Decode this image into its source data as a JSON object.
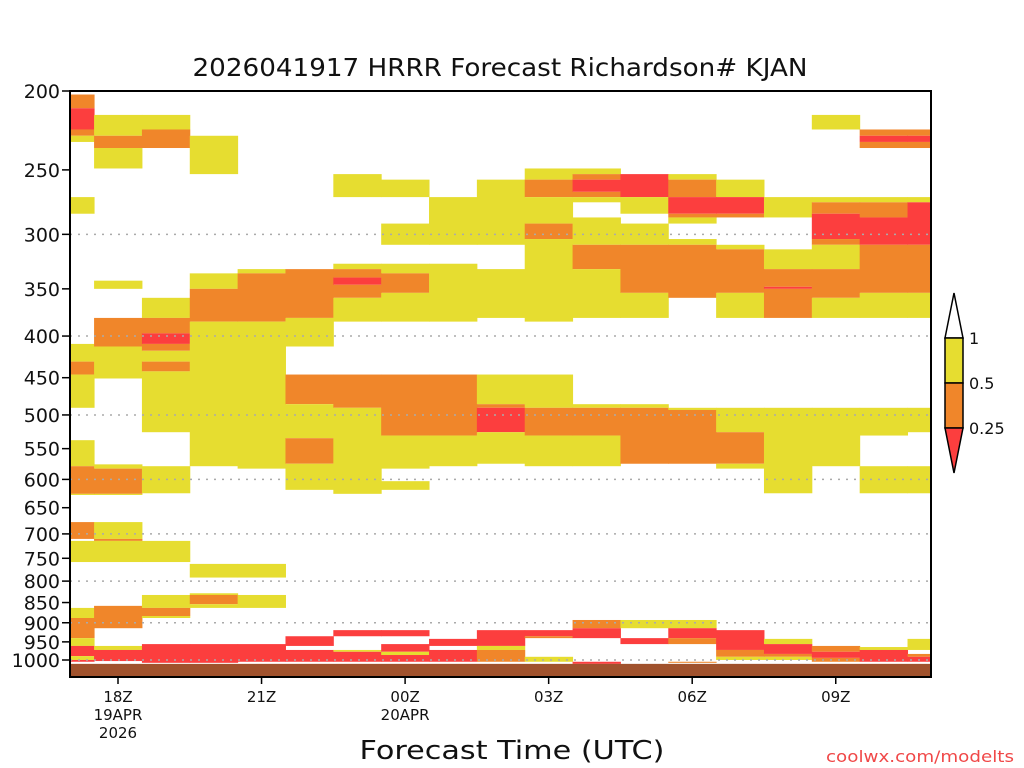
{
  "chart_data": {
    "type": "heatmap",
    "title": "2026041917 HRRR Forecast Richardson# KJAN",
    "xlabel": "Forecast Time (UTC)",
    "ylabel": "",
    "y_scale": "log-pressure (hPa), inverted",
    "ylim": [
      200,
      1050
    ],
    "yticks": [
      200,
      250,
      300,
      350,
      400,
      450,
      500,
      550,
      600,
      650,
      700,
      750,
      800,
      850,
      900,
      950,
      1000
    ],
    "ygrid": [
      300,
      400,
      500,
      600,
      700,
      800,
      900,
      1000
    ],
    "xticks": [
      {
        "hour_offset": 0,
        "label": "18Z",
        "sub1": "19APR",
        "sub2": "2026"
      },
      {
        "hour_offset": 3,
        "label": "21Z",
        "sub1": "",
        "sub2": ""
      },
      {
        "hour_offset": 6,
        "label": "00Z",
        "sub1": "20APR",
        "sub2": ""
      },
      {
        "hour_offset": 9,
        "label": "03Z",
        "sub1": "",
        "sub2": ""
      },
      {
        "hour_offset": 12,
        "label": "06Z",
        "sub1": "",
        "sub2": ""
      },
      {
        "hour_offset": 15,
        "label": "09Z",
        "sub1": "",
        "sub2": ""
      }
    ],
    "categories": {
      "y": {
        "range": "0.5 - 1",
        "color": "#e6dd30"
      },
      "o": {
        "range": "0.25 - 0.5",
        "color": "#f0862a"
      },
      "r": {
        "range": "< 0.25",
        "color": "#fc3e3e"
      }
    },
    "legend": {
      "placement": "right",
      "labels": [
        "1",
        "0.5",
        "0.25"
      ],
      "above_color": "#ffffff"
    },
    "ground": {
      "from_hpa": 1011,
      "to_hpa": 1050,
      "color": "#a0522d"
    },
    "columns": [
      {
        "time": "17Z",
        "hour_offset": -1,
        "segments": [
          [
            202,
            210,
            "o"
          ],
          [
            210,
            223,
            "r"
          ],
          [
            223,
            227,
            "o"
          ],
          [
            227,
            231,
            "y"
          ],
          [
            270,
            283,
            "y"
          ],
          [
            409,
            430,
            "y"
          ],
          [
            430,
            446,
            "o"
          ],
          [
            446,
            490,
            "y"
          ],
          [
            537,
            578,
            "y"
          ],
          [
            578,
            625,
            "o"
          ],
          [
            625,
            627,
            "y"
          ],
          [
            677,
            710,
            "o"
          ],
          [
            714,
            758,
            "y"
          ],
          [
            863,
            888,
            "y"
          ],
          [
            888,
            940,
            "o"
          ],
          [
            940,
            961,
            "y"
          ],
          [
            961,
            989,
            "r"
          ],
          [
            989,
            1000,
            "y"
          ],
          [
            1000,
            1005,
            "r"
          ]
        ]
      },
      {
        "time": "18Z",
        "hour_offset": 0,
        "segments": [
          [
            214,
            227,
            "y"
          ],
          [
            227,
            235,
            "o"
          ],
          [
            235,
            249,
            "y"
          ],
          [
            342,
            350,
            "y"
          ],
          [
            380,
            412,
            "o"
          ],
          [
            412,
            451,
            "y"
          ],
          [
            575,
            582,
            "y"
          ],
          [
            582,
            625,
            "o"
          ],
          [
            625,
            627,
            "y"
          ],
          [
            677,
            710,
            "y"
          ],
          [
            710,
            714,
            "o"
          ],
          [
            714,
            758,
            "y"
          ],
          [
            858,
            914,
            "o"
          ],
          [
            961,
            972,
            "y"
          ],
          [
            972,
            1003,
            "r"
          ]
        ]
      },
      {
        "time": "19Z",
        "hour_offset": 1,
        "segments": [
          [
            214,
            223,
            "y"
          ],
          [
            223,
            235,
            "o"
          ],
          [
            359,
            380,
            "y"
          ],
          [
            380,
            397,
            "o"
          ],
          [
            397,
            409,
            "r"
          ],
          [
            409,
            417,
            "o"
          ],
          [
            417,
            430,
            "y"
          ],
          [
            430,
            442,
            "o"
          ],
          [
            442,
            525,
            "y"
          ],
          [
            578,
            624,
            "y"
          ],
          [
            714,
            758,
            "y"
          ],
          [
            832,
            863,
            "y"
          ],
          [
            863,
            883,
            "o"
          ],
          [
            883,
            888,
            "y"
          ],
          [
            956,
            1008,
            "r"
          ]
        ]
      },
      {
        "time": "20Z",
        "hour_offset": 2,
        "segments": [
          [
            227,
            253,
            "y"
          ],
          [
            335,
            350,
            "y"
          ],
          [
            350,
            384,
            "o"
          ],
          [
            384,
            578,
            "y"
          ],
          [
            762,
            792,
            "y"
          ],
          [
            828,
            832,
            "y"
          ],
          [
            832,
            854,
            "o"
          ],
          [
            854,
            863,
            "y"
          ],
          [
            956,
            1008,
            "r"
          ]
        ]
      },
      {
        "time": "21Z",
        "hour_offset": 3,
        "segments": [
          [
            331,
            335,
            "y"
          ],
          [
            335,
            384,
            "o"
          ],
          [
            384,
            582,
            "y"
          ],
          [
            762,
            792,
            "y"
          ],
          [
            832,
            863,
            "y"
          ],
          [
            956,
            1005,
            "r"
          ]
        ]
      },
      {
        "time": "22Z",
        "hour_offset": 4,
        "segments": [
          [
            331,
            380,
            "o"
          ],
          [
            380,
            412,
            "y"
          ],
          [
            446,
            485,
            "o"
          ],
          [
            485,
            534,
            "y"
          ],
          [
            534,
            574,
            "o"
          ],
          [
            574,
            618,
            "y"
          ],
          [
            935,
            961,
            "r"
          ],
          [
            972,
            1005,
            "r"
          ]
        ]
      },
      {
        "time": "23Z",
        "hour_offset": 5,
        "segments": [
          [
            253,
            270,
            "y"
          ],
          [
            326,
            331,
            "y"
          ],
          [
            331,
            339,
            "o"
          ],
          [
            339,
            346,
            "r"
          ],
          [
            346,
            359,
            "o"
          ],
          [
            359,
            384,
            "y"
          ],
          [
            446,
            490,
            "o"
          ],
          [
            490,
            625,
            "y"
          ],
          [
            919,
            935,
            "r"
          ],
          [
            972,
            977,
            "y"
          ],
          [
            977,
            1005,
            "r"
          ]
        ]
      },
      {
        "time": "00Z",
        "hour_offset": 6,
        "segments": [
          [
            257,
            270,
            "y"
          ],
          [
            291,
            309,
            "y"
          ],
          [
            326,
            335,
            "y"
          ],
          [
            335,
            354,
            "o"
          ],
          [
            354,
            384,
            "y"
          ],
          [
            446,
            530,
            "o"
          ],
          [
            530,
            582,
            "y"
          ],
          [
            603,
            618,
            "y"
          ],
          [
            919,
            935,
            "r"
          ],
          [
            956,
            977,
            "r"
          ],
          [
            977,
            986,
            "y"
          ],
          [
            986,
            1005,
            "r"
          ]
        ]
      },
      {
        "time": "01Z",
        "hour_offset": 7,
        "segments": [
          [
            270,
            309,
            "y"
          ],
          [
            326,
            384,
            "y"
          ],
          [
            446,
            530,
            "o"
          ],
          [
            530,
            578,
            "y"
          ],
          [
            942,
            961,
            "r"
          ],
          [
            972,
            1005,
            "r"
          ]
        ]
      },
      {
        "time": "02Z",
        "hour_offset": 8,
        "segments": [
          [
            257,
            309,
            "y"
          ],
          [
            331,
            380,
            "y"
          ],
          [
            446,
            485,
            "y"
          ],
          [
            485,
            490,
            "o"
          ],
          [
            490,
            525,
            "r"
          ],
          [
            525,
            574,
            "y"
          ],
          [
            919,
            961,
            "r"
          ],
          [
            961,
            972,
            "y"
          ],
          [
            972,
            1005,
            "o"
          ]
        ]
      },
      {
        "time": "03Z",
        "hour_offset": 9,
        "segments": [
          [
            249,
            257,
            "y"
          ],
          [
            257,
            270,
            "o"
          ],
          [
            270,
            291,
            "y"
          ],
          [
            291,
            304,
            "o"
          ],
          [
            304,
            384,
            "y"
          ],
          [
            446,
            490,
            "y"
          ],
          [
            490,
            530,
            "o"
          ],
          [
            530,
            578,
            "y"
          ],
          [
            919,
            935,
            "r"
          ],
          [
            935,
            940,
            "o"
          ],
          [
            991,
            1005,
            "y"
          ]
        ]
      },
      {
        "time": "04Z",
        "hour_offset": 10,
        "segments": [
          [
            249,
            253,
            "y"
          ],
          [
            253,
            257,
            "o"
          ],
          [
            257,
            266,
            "r"
          ],
          [
            266,
            270,
            "o"
          ],
          [
            270,
            274,
            "y"
          ],
          [
            286,
            309,
            "y"
          ],
          [
            309,
            331,
            "o"
          ],
          [
            331,
            380,
            "y"
          ],
          [
            485,
            490,
            "y"
          ],
          [
            490,
            530,
            "o"
          ],
          [
            530,
            578,
            "y"
          ],
          [
            893,
            914,
            "o"
          ],
          [
            914,
            940,
            "r"
          ],
          [
            1005,
            1011,
            "r"
          ]
        ]
      },
      {
        "time": "05Z",
        "hour_offset": 11,
        "segments": [
          [
            253,
            270,
            "r"
          ],
          [
            270,
            283,
            "y"
          ],
          [
            291,
            309,
            "y"
          ],
          [
            309,
            354,
            "o"
          ],
          [
            354,
            380,
            "y"
          ],
          [
            485,
            490,
            "y"
          ],
          [
            490,
            574,
            "o"
          ],
          [
            893,
            914,
            "y"
          ],
          [
            940,
            956,
            "r"
          ]
        ]
      },
      {
        "time": "06Z",
        "hour_offset": 12,
        "segments": [
          [
            253,
            257,
            "y"
          ],
          [
            257,
            270,
            "o"
          ],
          [
            270,
            283,
            "r"
          ],
          [
            283,
            286,
            "o"
          ],
          [
            286,
            291,
            "y"
          ],
          [
            304,
            309,
            "y"
          ],
          [
            309,
            359,
            "o"
          ],
          [
            490,
            493,
            "y"
          ],
          [
            493,
            574,
            "o"
          ],
          [
            893,
            914,
            "y"
          ],
          [
            914,
            940,
            "r"
          ],
          [
            940,
            956,
            "o"
          ],
          [
            1005,
            1008,
            "o"
          ]
        ]
      },
      {
        "time": "07Z",
        "hour_offset": 13,
        "segments": [
          [
            257,
            270,
            "y"
          ],
          [
            270,
            283,
            "r"
          ],
          [
            283,
            286,
            "o"
          ],
          [
            309,
            313,
            "y"
          ],
          [
            313,
            354,
            "o"
          ],
          [
            354,
            380,
            "y"
          ],
          [
            490,
            525,
            "y"
          ],
          [
            525,
            574,
            "o"
          ],
          [
            574,
            582,
            "y"
          ],
          [
            919,
            972,
            "r"
          ],
          [
            972,
            991,
            "o"
          ],
          [
            991,
            1000,
            "y"
          ]
        ]
      },
      {
        "time": "08Z",
        "hour_offset": 14,
        "segments": [
          [
            270,
            286,
            "y"
          ],
          [
            313,
            331,
            "y"
          ],
          [
            331,
            348,
            "o"
          ],
          [
            348,
            350,
            "r"
          ],
          [
            350,
            380,
            "o"
          ],
          [
            490,
            624,
            "y"
          ],
          [
            942,
            956,
            "y"
          ],
          [
            956,
            983,
            "r"
          ],
          [
            983,
            991,
            "o"
          ],
          [
            991,
            1000,
            "y"
          ]
        ]
      },
      {
        "time": "09Z",
        "hour_offset": 15,
        "segments": [
          [
            214,
            223,
            "y"
          ],
          [
            270,
            274,
            "y"
          ],
          [
            274,
            283,
            "o"
          ],
          [
            283,
            304,
            "r"
          ],
          [
            304,
            309,
            "o"
          ],
          [
            309,
            331,
            "y"
          ],
          [
            331,
            359,
            "o"
          ],
          [
            359,
            380,
            "y"
          ],
          [
            490,
            578,
            "y"
          ],
          [
            961,
            977,
            "o"
          ],
          [
            977,
            994,
            "r"
          ],
          [
            994,
            1005,
            "o"
          ]
        ]
      },
      {
        "time": "10Z",
        "hour_offset": 16,
        "segments": [
          [
            223,
            227,
            "o"
          ],
          [
            227,
            231,
            "r"
          ],
          [
            231,
            235,
            "o"
          ],
          [
            270,
            274,
            "y"
          ],
          [
            274,
            286,
            "o"
          ],
          [
            286,
            309,
            "r"
          ],
          [
            309,
            354,
            "o"
          ],
          [
            354,
            380,
            "y"
          ],
          [
            490,
            530,
            "y"
          ],
          [
            578,
            624,
            "y"
          ],
          [
            964,
            972,
            "y"
          ],
          [
            972,
            1005,
            "r"
          ]
        ]
      },
      {
        "time": "11Z",
        "hour_offset": 17,
        "segments": [
          [
            223,
            227,
            "o"
          ],
          [
            227,
            231,
            "r"
          ],
          [
            231,
            235,
            "o"
          ],
          [
            270,
            274,
            "y"
          ],
          [
            274,
            309,
            "r"
          ],
          [
            309,
            354,
            "o"
          ],
          [
            354,
            380,
            "y"
          ],
          [
            490,
            525,
            "y"
          ],
          [
            578,
            624,
            "y"
          ],
          [
            942,
            972,
            "y"
          ],
          [
            983,
            991,
            "o"
          ],
          [
            991,
            1005,
            "r"
          ]
        ]
      }
    ]
  },
  "footer": {
    "credit": "coolwx.com/modelts",
    "credit_color": "#f04848"
  }
}
